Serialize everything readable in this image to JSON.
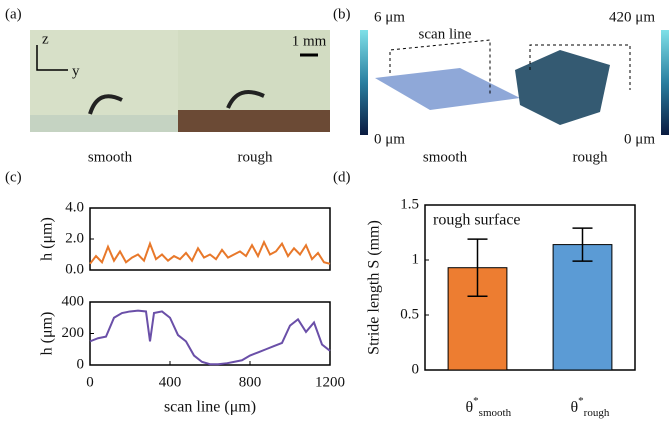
{
  "panel_labels": [
    "(a)",
    "(b)",
    "(c)",
    "(d)"
  ],
  "image_a": {
    "axis_z": "z",
    "axis_y": "y",
    "scale": "1 mm",
    "captions": [
      "smooth",
      "rough"
    ]
  },
  "image_b": {
    "smooth_max": "6 μm",
    "smooth_min": "0 μm",
    "rough_max": "420 μm",
    "rough_min": "0 μm",
    "scan_line": "scan line",
    "captions": [
      "smooth",
      "rough"
    ]
  },
  "chart_data": [
    {
      "type": "line",
      "ylabel": "h (μm)",
      "color": "#e8782a",
      "xlim": [
        0,
        1200
      ],
      "ylim": [
        0,
        4
      ],
      "yticks": [
        {
          "value": 0,
          "label": "0.0"
        },
        {
          "value": 2,
          "label": "2.0"
        },
        {
          "value": 4,
          "label": "4.0"
        }
      ],
      "x": [
        0,
        30,
        60,
        90,
        120,
        150,
        180,
        210,
        240,
        270,
        300,
        330,
        360,
        390,
        420,
        450,
        480,
        510,
        540,
        570,
        600,
        630,
        660,
        690,
        720,
        750,
        780,
        810,
        840,
        870,
        900,
        930,
        960,
        990,
        1020,
        1050,
        1080,
        1110,
        1140,
        1170,
        1200
      ],
      "values": [
        0.4,
        0.9,
        0.5,
        1.5,
        0.6,
        1.2,
        0.5,
        0.8,
        1.0,
        0.6,
        1.7,
        0.7,
        1.0,
        0.6,
        0.9,
        0.7,
        1.1,
        0.6,
        1.4,
        0.8,
        1.0,
        0.7,
        1.3,
        0.8,
        1.0,
        1.2,
        0.9,
        1.6,
        0.9,
        1.8,
        1.0,
        1.2,
        1.7,
        0.9,
        1.4,
        1.0,
        1.6,
        0.7,
        1.1,
        0.5,
        0.4
      ]
    },
    {
      "type": "line",
      "ylabel": "h (μm)",
      "xlabel": "scan line (μm)",
      "color": "#6a4fa8",
      "xlim": [
        0,
        1200
      ],
      "ylim": [
        0,
        400
      ],
      "yticks": [
        0,
        200,
        400
      ],
      "xticks": [
        0,
        400,
        800,
        1200
      ],
      "x": [
        0,
        40,
        80,
        120,
        160,
        200,
        240,
        280,
        300,
        320,
        360,
        400,
        440,
        480,
        520,
        560,
        600,
        640,
        680,
        720,
        760,
        800,
        840,
        880,
        920,
        960,
        1000,
        1040,
        1080,
        1120,
        1160,
        1200
      ],
      "values": [
        150,
        170,
        180,
        300,
        330,
        340,
        345,
        340,
        150,
        330,
        340,
        300,
        190,
        150,
        60,
        20,
        5,
        5,
        10,
        20,
        30,
        60,
        80,
        100,
        120,
        140,
        250,
        290,
        210,
        270,
        130,
        90
      ]
    },
    {
      "type": "bar",
      "ylabel": "Stride length S (mm)",
      "annotation": "rough surface",
      "ylim": [
        0,
        1.5
      ],
      "yticks": [
        0,
        0.5,
        1,
        1.5
      ],
      "categories": [
        {
          "base": "θ",
          "sup": "*",
          "sub": "smooth"
        },
        {
          "base": "θ",
          "sup": "*",
          "sub": "rough"
        }
      ],
      "values": [
        0.93,
        1.14
      ],
      "errors": [
        0.26,
        0.15
      ],
      "colors": [
        "#ed7d31",
        "#5b9bd5"
      ]
    }
  ]
}
